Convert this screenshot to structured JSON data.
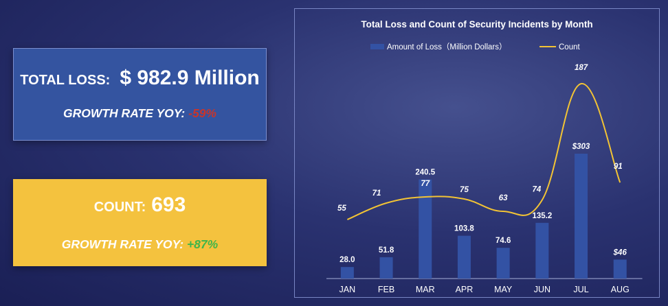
{
  "kpis": {
    "total_loss": {
      "label": "TOTAL LOSS:",
      "value": "$ 982.9 Million",
      "growth_label": "GROWTH RATE YOY:",
      "growth_value": "-59%"
    },
    "count": {
      "label": "COUNT:",
      "value": "693",
      "growth_label": "GROWTH RATE YOY:",
      "growth_value": "+87%"
    }
  },
  "colors": {
    "bar": "#3352a4",
    "line": "#f3c434",
    "loss_card": "#3454a0",
    "count_card": "#f4c23e",
    "negative": "#c8352b",
    "positive": "#3fb54a"
  },
  "chart_data": {
    "type": "bar",
    "title": "Total Loss and Count of Security Incidents by Month",
    "categories": [
      "JAN",
      "FEB",
      "MAR",
      "APR",
      "MAY",
      "JUN",
      "JUL",
      "AUG"
    ],
    "series": [
      {
        "name": "Amount of Loss（Million Dollars）",
        "type": "bar",
        "values": [
          28.0,
          51.8,
          240.5,
          103.8,
          74.6,
          135.2,
          303,
          46
        ],
        "labels": [
          "28.0",
          "51.8",
          "240.5",
          "103.8",
          "74.6",
          "135.2",
          "$303",
          "$46"
        ]
      },
      {
        "name": "Count",
        "type": "line",
        "smooth": true,
        "values": [
          55,
          71,
          77,
          75,
          63,
          74,
          187,
          91
        ],
        "labels": [
          "55",
          "71",
          "77",
          "75",
          "63",
          "74",
          "187",
          "91"
        ]
      }
    ],
    "legend_position": "top-center",
    "grid": false
  }
}
